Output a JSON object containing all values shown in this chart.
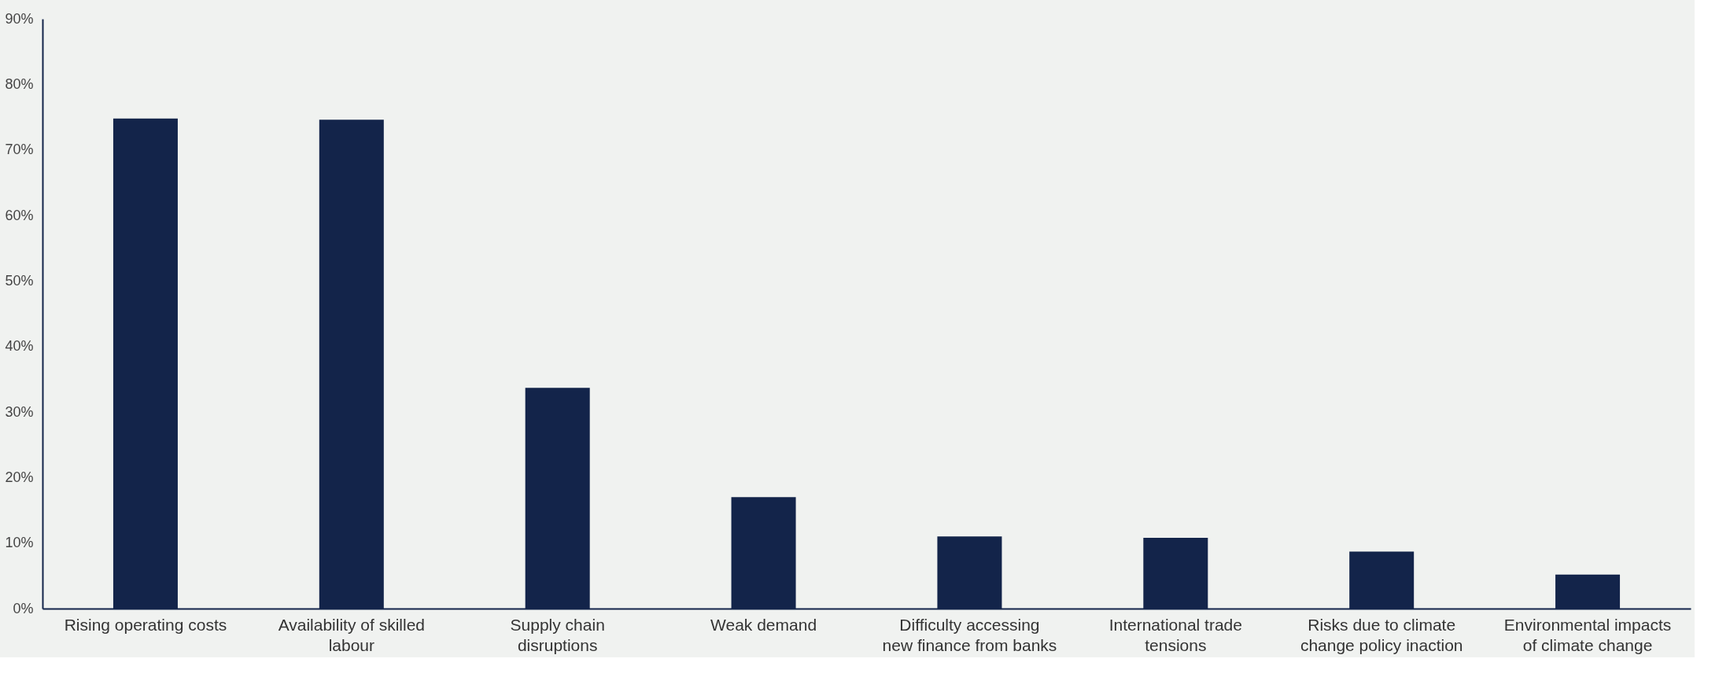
{
  "chart_data": {
    "type": "bar",
    "categories": [
      "Rising operating costs",
      "Availability of skilled labour",
      "Supply chain disruptions",
      "Weak demand",
      "Difficulty accessing new finance from banks",
      "International trade tensions",
      "Risks due to climate change policy inaction",
      "Environmental impacts of climate change"
    ],
    "values": [
      74.8,
      74.6,
      33.7,
      17.0,
      11.0,
      10.8,
      8.7,
      5.2
    ],
    "color": "#13244a",
    "ylim": [
      0,
      90
    ],
    "yticks": [
      {
        "value": 0,
        "label": "0%"
      },
      {
        "value": 10,
        "label": "10%"
      },
      {
        "value": 20,
        "label": "20%"
      },
      {
        "value": 30,
        "label": "30%"
      },
      {
        "value": 40,
        "label": "40%"
      },
      {
        "value": 50,
        "label": "50%"
      },
      {
        "value": 60,
        "label": "60%"
      },
      {
        "value": 70,
        "label": "70%"
      },
      {
        "value": 80,
        "label": "80%"
      },
      {
        "value": 90,
        "label": "90%"
      }
    ],
    "grid": false
  }
}
